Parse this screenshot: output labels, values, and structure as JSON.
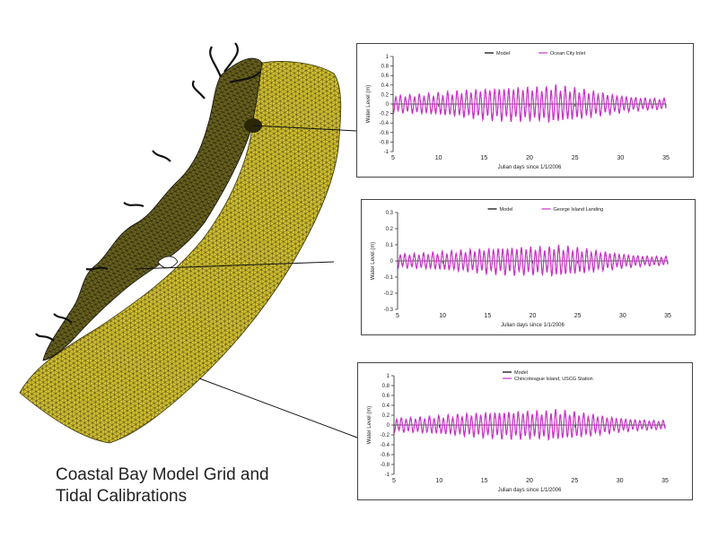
{
  "caption": {
    "line1": "Coastal Bay Model Grid and",
    "line2": "Tidal Calibrations"
  },
  "colors": {
    "mesh_fill": "#d9c734",
    "mesh_line": "#3b3608",
    "land": "#141414",
    "model": "#000000",
    "observed": "#cc33cc"
  },
  "chart_data": [
    {
      "type": "line",
      "xlabel": "Julian days since 1/1/2006",
      "ylabel": "Water Level (m)",
      "xlim": [
        5,
        35
      ],
      "ylim": [
        -1,
        1
      ],
      "xticks": [
        5,
        10,
        15,
        20,
        25,
        30,
        35
      ],
      "yticks": [
        -1,
        -0.8,
        -0.6,
        -0.4,
        -0.2,
        0,
        0.2,
        0.4,
        0.6,
        0.8,
        1
      ],
      "yticklabels": [
        "-1",
        "-0.8",
        "-0.6",
        "-0.4",
        "-0.2",
        "0",
        "0.2",
        "0.4",
        "0.6",
        "0.8",
        "1"
      ],
      "legend": "top-center",
      "series": [
        {
          "name": "Model",
          "color": "#000000",
          "amplitude": 0.3
        },
        {
          "name": "Ocean City Inlet",
          "color": "#cc33cc",
          "amplitude": 0.33
        }
      ]
    },
    {
      "type": "line",
      "xlabel": "Julian days since 1/1/2006",
      "ylabel": "Water Level (m)",
      "xlim": [
        5,
        35
      ],
      "ylim": [
        -0.3,
        0.3
      ],
      "xticks": [
        5,
        10,
        15,
        20,
        25,
        30,
        35
      ],
      "yticks": [
        -0.3,
        -0.2,
        -0.1,
        0,
        0.1,
        0.2,
        0.3
      ],
      "yticklabels": [
        "-0.3",
        "-0.2",
        "-0.1",
        "0",
        "0.1",
        "0.2",
        "0.3"
      ],
      "legend": "top-center",
      "series": [
        {
          "name": "Model",
          "color": "#000000",
          "amplitude": 0.07
        },
        {
          "name": "George Island Landing",
          "color": "#cc33cc",
          "amplitude": 0.08
        }
      ]
    },
    {
      "type": "line",
      "xlabel": "Julian days since 1/1/2006",
      "ylabel": "Water Level (m)",
      "xlim": [
        5,
        35
      ],
      "ylim": [
        -1,
        1
      ],
      "xticks": [
        5,
        10,
        15,
        20,
        25,
        30,
        35
      ],
      "yticks": [
        -1,
        -0.8,
        -0.6,
        -0.4,
        -0.2,
        0,
        0.2,
        0.4,
        0.6,
        0.8,
        1
      ],
      "yticklabels": [
        "-1",
        "-0.8",
        "-0.6",
        "-0.4",
        "-0.2",
        "0",
        "0.2",
        "0.4",
        "0.6",
        "0.8",
        "1"
      ],
      "legend": "top-center",
      "series": [
        {
          "name": "Model",
          "color": "#000000",
          "amplitude": 0.24
        },
        {
          "name": "Chincoteague Island, USCG Station",
          "color": "#cc33cc",
          "amplitude": 0.26
        }
      ]
    }
  ]
}
